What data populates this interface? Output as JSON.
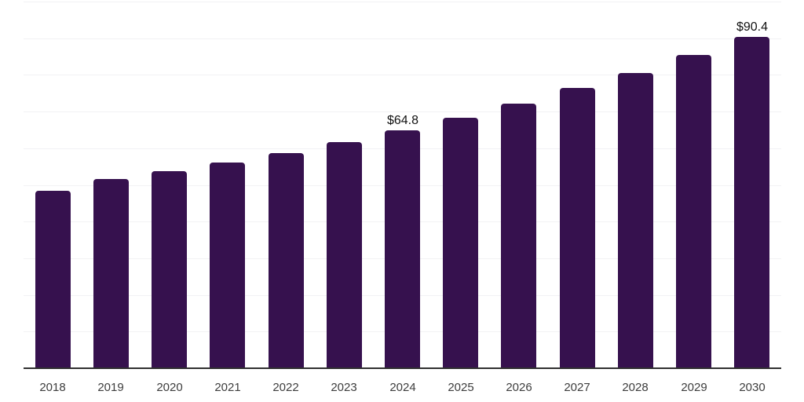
{
  "chart_data": {
    "type": "bar",
    "title": "",
    "xlabel": "",
    "ylabel": "",
    "categories": [
      "2018",
      "2019",
      "2020",
      "2021",
      "2022",
      "2023",
      "2024",
      "2025",
      "2026",
      "2027",
      "2028",
      "2029",
      "2030"
    ],
    "values": [
      48.3,
      51.5,
      53.8,
      56.1,
      58.7,
      61.6,
      64.8,
      68.3,
      72.2,
      76.4,
      80.5,
      85.4,
      90.4
    ],
    "data_labels": [
      {
        "category": "2024",
        "text": "$64.8"
      },
      {
        "category": "2030",
        "text": "$90.4"
      }
    ],
    "ylim": [
      0,
      100
    ],
    "grid_step": 10,
    "grid": true,
    "legend": false,
    "y_tick_labels_visible": false,
    "colors": {
      "bar": "#36114E",
      "gridline": "#F2F2F4",
      "axis": "#303030",
      "tick_label": "#3D3D3D",
      "data_label": "#111111",
      "background": "#FFFFFF"
    }
  }
}
